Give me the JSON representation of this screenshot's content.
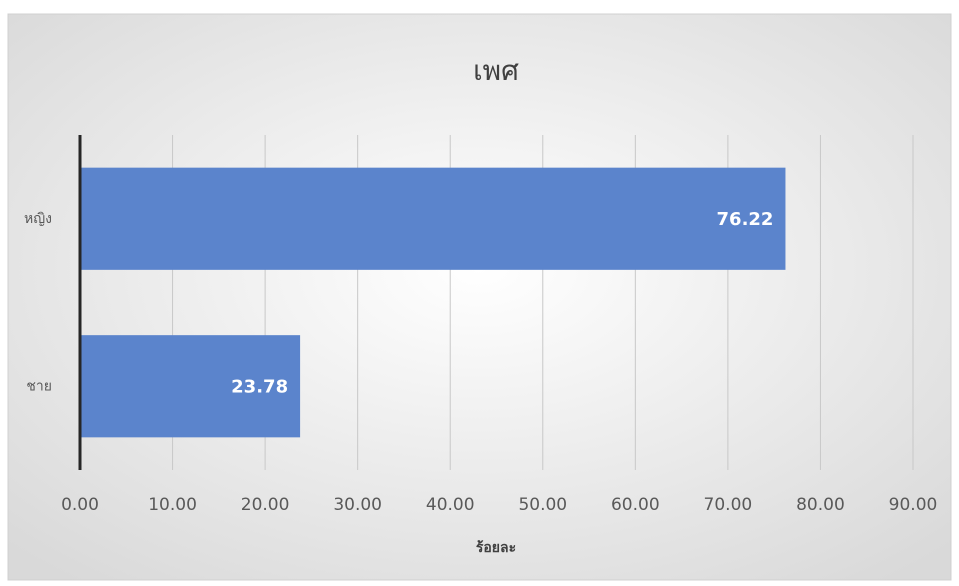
{
  "chart_data": {
    "type": "bar",
    "orientation": "horizontal",
    "title": "เพศ",
    "x_label": "ร้อยละ",
    "categories": [
      "หญิง",
      "ชาย"
    ],
    "values": [
      76.22,
      23.78
    ],
    "color": "#5b84cc",
    "xlim": [
      0,
      90
    ],
    "xticks": [
      {
        "value": 0,
        "label": "0.00"
      },
      {
        "value": 10,
        "label": "10.00"
      },
      {
        "value": 20,
        "label": "20.00"
      },
      {
        "value": 30,
        "label": "30.00"
      },
      {
        "value": 40,
        "label": "40.00"
      },
      {
        "value": 50,
        "label": "50.00"
      },
      {
        "value": 60,
        "label": "60.00"
      },
      {
        "value": 70,
        "label": "70.00"
      },
      {
        "value": 80,
        "label": "80.00"
      },
      {
        "value": 90,
        "label": "90.00"
      }
    ],
    "grid": true
  }
}
